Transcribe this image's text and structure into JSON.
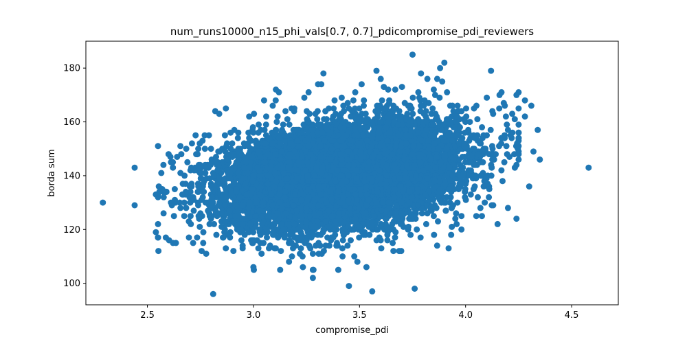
{
  "chart_data": {
    "type": "scatter",
    "title": "num_runs10000_n15_phi_vals[0.7, 0.7]_pdicompromise_pdi_reviewers",
    "xlabel": "compromise_pdi",
    "ylabel": "borda sum",
    "xlim": [
      2.21,
      4.72
    ],
    "ylim": [
      92,
      190
    ],
    "xticks": [
      2.5,
      3.0,
      3.5,
      4.0,
      4.5
    ],
    "xtick_labels": [
      "2.5",
      "3.0",
      "3.5",
      "4.0",
      "4.5"
    ],
    "yticks": [
      100,
      120,
      140,
      160,
      180
    ],
    "ytick_labels": [
      "100",
      "120",
      "140",
      "160",
      "180"
    ],
    "grid": false,
    "marker_color": "#1f77b4",
    "n_points": 10000,
    "distribution": {
      "x_mean": 3.42,
      "x_std": 0.27,
      "y_mean": 140.5,
      "y_std": 9.5,
      "correlation": 0.3
    },
    "points": [
      [
        2.29,
        130
      ],
      [
        2.44,
        143
      ],
      [
        2.44,
        129
      ],
      [
        2.54,
        119
      ],
      [
        2.54,
        133
      ],
      [
        2.57,
        135
      ],
      [
        2.59,
        134
      ],
      [
        2.6,
        148
      ],
      [
        2.62,
        145
      ],
      [
        2.64,
        147
      ],
      [
        2.66,
        148
      ],
      [
        2.71,
        152
      ],
      [
        2.73,
        148
      ],
      [
        2.74,
        150
      ],
      [
        2.76,
        153
      ],
      [
        2.79,
        155
      ],
      [
        2.81,
        96
      ],
      [
        2.82,
        164
      ],
      [
        2.87,
        165
      ],
      [
        2.9,
        152
      ],
      [
        2.91,
        157
      ],
      [
        2.98,
        162
      ],
      [
        3.0,
        106
      ],
      [
        3.05,
        168
      ],
      [
        3.06,
        162
      ],
      [
        3.12,
        171
      ],
      [
        3.16,
        161
      ],
      [
        3.24,
        169
      ],
      [
        3.26,
        171
      ],
      [
        3.28,
        111
      ],
      [
        3.28,
        105
      ],
      [
        3.28,
        102
      ],
      [
        3.32,
        174
      ],
      [
        3.33,
        178
      ],
      [
        3.4,
        105
      ],
      [
        3.42,
        110
      ],
      [
        3.45,
        99
      ],
      [
        3.48,
        171
      ],
      [
        3.49,
        108
      ],
      [
        3.51,
        174
      ],
      [
        3.56,
        97
      ],
      [
        3.58,
        179
      ],
      [
        3.6,
        176
      ],
      [
        3.64,
        167
      ],
      [
        3.66,
        112
      ],
      [
        3.7,
        173
      ],
      [
        3.75,
        185
      ],
      [
        3.76,
        98
      ],
      [
        3.79,
        178
      ],
      [
        3.82,
        176
      ],
      [
        3.85,
        172
      ],
      [
        3.88,
        180
      ],
      [
        3.89,
        175
      ],
      [
        3.9,
        182
      ],
      [
        3.91,
        160
      ],
      [
        3.92,
        113
      ],
      [
        3.96,
        162
      ],
      [
        4.02,
        160
      ],
      [
        4.04,
        165
      ],
      [
        4.06,
        148
      ],
      [
        4.07,
        128
      ],
      [
        4.1,
        169
      ],
      [
        4.12,
        179
      ],
      [
        4.13,
        163
      ],
      [
        4.16,
        170
      ],
      [
        4.18,
        167
      ],
      [
        4.19,
        162
      ],
      [
        4.2,
        157
      ],
      [
        4.2,
        128
      ],
      [
        4.22,
        163
      ],
      [
        4.24,
        170
      ],
      [
        4.24,
        144
      ],
      [
        4.24,
        124
      ],
      [
        4.28,
        162
      ],
      [
        4.28,
        168
      ],
      [
        4.3,
        136
      ],
      [
        4.31,
        166
      ],
      [
        4.32,
        149
      ],
      [
        4.34,
        157
      ],
      [
        4.35,
        146
      ],
      [
        4.58,
        143
      ]
    ]
  }
}
